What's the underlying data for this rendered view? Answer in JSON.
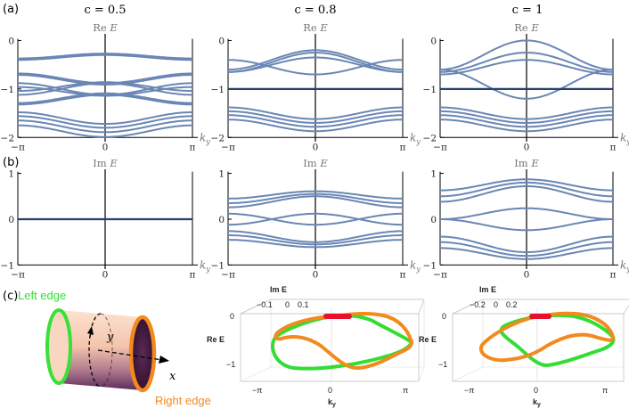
{
  "panel_labels": [
    "(a)",
    "(b)",
    "(c)"
  ],
  "column_titles": [
    "c = 0.5",
    "c = 0.8",
    "c = 1"
  ],
  "colors": {
    "band": "#6a86b4",
    "flat": "#24406e",
    "left_edge": "#33dd33",
    "right_edge": "#f28a1e",
    "degenerate": "#e8102a"
  },
  "cylinder": {
    "left_label": "Left edge",
    "right_label": "Right edge",
    "x_label": "x",
    "y_label": "y"
  },
  "chart_data": [
    {
      "type": "line",
      "row": "a",
      "title": "c = 0.5",
      "ylabel": "Re E",
      "xlabel": "k_y",
      "x_ticks": [
        "−π",
        "0",
        "π"
      ],
      "y_ticks": [
        "0",
        "−1",
        "−2"
      ],
      "ylim": [
        -2.05,
        0.1
      ],
      "series": [
        {
          "base": -0.32,
          "amp": 0.05,
          "dir": 1,
          "flat": false
        },
        {
          "base": -0.35,
          "amp": 0.05,
          "dir": 1,
          "flat": false
        },
        {
          "base": -0.78,
          "amp": 0.1,
          "dir": -1,
          "flat": false
        },
        {
          "base": -0.81,
          "amp": 0.1,
          "dir": -1,
          "flat": false
        },
        {
          "base": -0.95,
          "amp": 0.09,
          "dir": 1,
          "flat": false
        },
        {
          "base": -1.0,
          "amp": 0.12,
          "dir": 1,
          "flat": false
        },
        {
          "base": -1.0,
          "amp": 0.12,
          "dir": -1,
          "flat": false
        },
        {
          "base": -1.05,
          "amp": 0.09,
          "dir": -1,
          "flat": false
        },
        {
          "base": -1.19,
          "amp": 0.1,
          "dir": 1,
          "flat": false
        },
        {
          "base": -1.22,
          "amp": 0.1,
          "dir": 1,
          "flat": false
        },
        {
          "base": -1.6,
          "amp": 0.12,
          "dir": -1,
          "flat": false
        },
        {
          "base": -1.68,
          "amp": 0.12,
          "dir": -1,
          "flat": false
        },
        {
          "base": -1.77,
          "amp": 0.12,
          "dir": -1,
          "flat": false
        },
        {
          "base": -1.87,
          "amp": 0.12,
          "dir": -1,
          "flat": false
        }
      ]
    },
    {
      "type": "line",
      "row": "a",
      "title": "c = 0.8",
      "ylabel": "Re E",
      "xlabel": "k_y",
      "x_ticks": [
        "−π",
        "0",
        "π"
      ],
      "y_ticks": [
        "0",
        "−1",
        "−2"
      ],
      "ylim": [
        -2.05,
        0.1
      ],
      "series": [
        {
          "base": -0.4,
          "amp": 0.2,
          "dir": 1,
          "flat": false
        },
        {
          "base": -0.45,
          "amp": 0.2,
          "dir": 1,
          "flat": false
        },
        {
          "base": -0.5,
          "amp": 0.15,
          "dir": 1,
          "flat": false
        },
        {
          "base": -0.55,
          "amp": 0.15,
          "dir": -1,
          "flat": false
        },
        {
          "base": -1.0,
          "amp": 0.0,
          "dir": 1,
          "flat": true
        },
        {
          "base": -1.5,
          "amp": 0.12,
          "dir": -1,
          "flat": false
        },
        {
          "base": -1.58,
          "amp": 0.12,
          "dir": -1,
          "flat": false
        },
        {
          "base": -1.66,
          "amp": 0.12,
          "dir": -1,
          "flat": false
        },
        {
          "base": -1.75,
          "amp": 0.12,
          "dir": -1,
          "flat": false
        }
      ]
    },
    {
      "type": "line",
      "row": "a",
      "title": "c = 1",
      "ylabel": "Re E",
      "xlabel": "k_y",
      "x_ticks": [
        "−π",
        "0",
        "π"
      ],
      "y_ticks": [
        "0",
        "−1",
        "−2"
      ],
      "ylim": [
        -2.05,
        0.1
      ],
      "series": [
        {
          "base": -0.3,
          "amp": 0.3,
          "dir": 1,
          "flat": false
        },
        {
          "base": -0.45,
          "amp": 0.2,
          "dir": 1,
          "flat": false
        },
        {
          "base": -0.55,
          "amp": 0.15,
          "dir": 1,
          "flat": false
        },
        {
          "base": -0.9,
          "amp": 0.3,
          "dir": -1,
          "flat": false
        },
        {
          "base": -1.0,
          "amp": 0.0,
          "dir": 1,
          "flat": true
        },
        {
          "base": -1.5,
          "amp": 0.12,
          "dir": -1,
          "flat": false
        },
        {
          "base": -1.58,
          "amp": 0.12,
          "dir": -1,
          "flat": false
        },
        {
          "base": -1.66,
          "amp": 0.12,
          "dir": -1,
          "flat": false
        },
        {
          "base": -1.75,
          "amp": 0.12,
          "dir": -1,
          "flat": false
        }
      ]
    },
    {
      "type": "line",
      "row": "b",
      "title": "c = 0.5",
      "ylabel": "Im E",
      "xlabel": "k_y",
      "x_ticks": [
        "−π",
        "0",
        "π"
      ],
      "y_ticks": [
        "1",
        "0",
        "−1"
      ],
      "ylim": [
        -1.05,
        1.05
      ],
      "series": [
        {
          "base": 0.0,
          "amp": 0.0,
          "dir": 1,
          "flat": true
        }
      ]
    },
    {
      "type": "line",
      "row": "b",
      "title": "c = 0.8",
      "ylabel": "Im E",
      "xlabel": "k_y",
      "x_ticks": [
        "−π",
        "0",
        "π"
      ],
      "y_ticks": [
        "1",
        "0",
        "−1"
      ],
      "ylim": [
        -1.05,
        1.05
      ],
      "series": [
        {
          "base": 0.38,
          "amp": 0.12,
          "dir": 1,
          "flat": false
        },
        {
          "base": 0.45,
          "amp": 0.1,
          "dir": 1,
          "flat": false
        },
        {
          "base": 0.53,
          "amp": 0.08,
          "dir": 1,
          "flat": false
        },
        {
          "base": 0.0,
          "amp": 0.12,
          "dir": 1,
          "flat": false
        },
        {
          "base": 0.0,
          "amp": 0.12,
          "dir": -1,
          "flat": false
        },
        {
          "base": -0.38,
          "amp": 0.12,
          "dir": -1,
          "flat": false
        },
        {
          "base": -0.45,
          "amp": 0.1,
          "dir": -1,
          "flat": false
        },
        {
          "base": -0.53,
          "amp": 0.08,
          "dir": -1,
          "flat": false
        }
      ]
    },
    {
      "type": "line",
      "row": "b",
      "title": "c = 1",
      "ylabel": "Im E",
      "xlabel": "k_y",
      "x_ticks": [
        "−π",
        "0",
        "π"
      ],
      "y_ticks": [
        "1",
        "0",
        "−1"
      ],
      "ylim": [
        -1.05,
        1.05
      ],
      "series": [
        {
          "base": 0.55,
          "amp": 0.17,
          "dir": 1,
          "flat": false
        },
        {
          "base": 0.65,
          "amp": 0.15,
          "dir": 1,
          "flat": false
        },
        {
          "base": 0.75,
          "amp": 0.12,
          "dir": 1,
          "flat": false
        },
        {
          "base": 0.12,
          "amp": 0.12,
          "dir": 1,
          "flat": false
        },
        {
          "base": -0.12,
          "amp": 0.12,
          "dir": -1,
          "flat": false
        },
        {
          "base": -0.55,
          "amp": 0.17,
          "dir": -1,
          "flat": false
        },
        {
          "base": -0.65,
          "amp": 0.15,
          "dir": -1,
          "flat": false
        },
        {
          "base": -0.75,
          "amp": 0.12,
          "dir": -1,
          "flat": false
        }
      ]
    }
  ],
  "panel_c": [
    {
      "title": "c = 0.8",
      "im_label": "Im E",
      "im_ticks": [
        "−0.1",
        "0",
        "0.1"
      ],
      "re_label": "Re E",
      "re_ticks": [
        "0",
        "−1"
      ],
      "k_label": "k",
      "k_sub": "y",
      "k_ticks": [
        "−π",
        "0",
        "π"
      ]
    },
    {
      "title": "c = 1",
      "im_label": "Im E",
      "im_ticks": [
        "−0.2",
        "0",
        "0.2"
      ],
      "re_label": "Re E",
      "re_ticks": [
        "0",
        "−1"
      ],
      "k_label": "k",
      "k_sub": "y",
      "k_ticks": [
        "−π",
        "0",
        "π"
      ]
    }
  ]
}
